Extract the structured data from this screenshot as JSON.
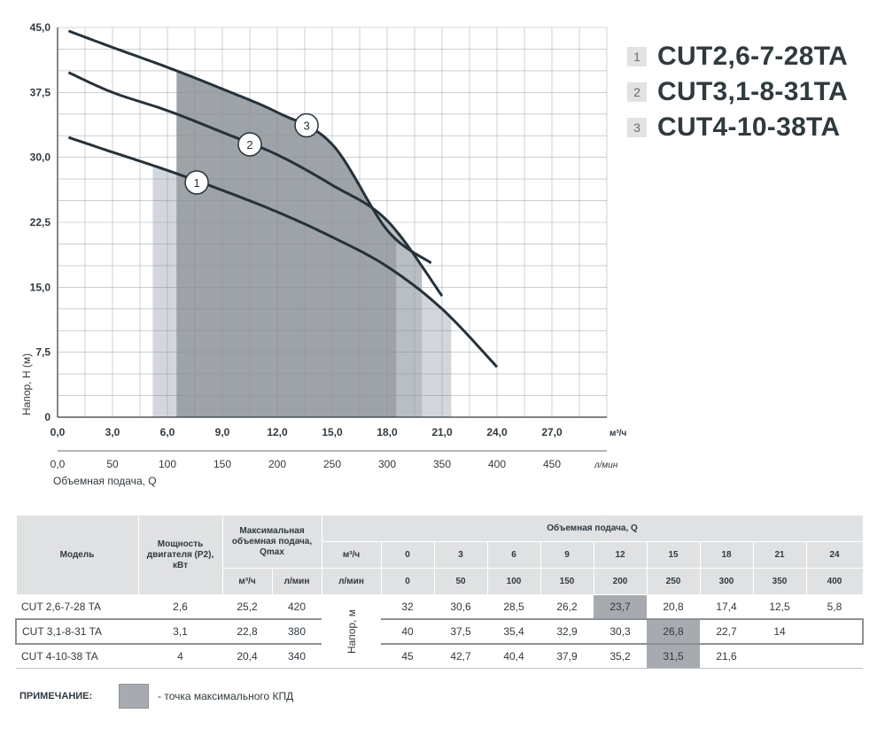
{
  "chart_data": {
    "type": "line",
    "ylabel": "Напор, Н (м)",
    "xlabel": "Объемная подача, Q",
    "x_unit_primary": "м³/ч",
    "x_unit_secondary": "л/мин",
    "xlim": [
      0,
      30
    ],
    "ylim": [
      0,
      45
    ],
    "x_ticks": [
      "0,0",
      "3,0",
      "6,0",
      "9,0",
      "12,0",
      "15,0",
      "18,0",
      "21,0",
      "24,0",
      "27,0"
    ],
    "x_ticks_secondary": [
      "0,0",
      "50",
      "100",
      "150",
      "200",
      "250",
      "300",
      "350",
      "400",
      "450"
    ],
    "y_ticks": [
      "0",
      "7,5",
      "15,0",
      "22,5",
      "30,0",
      "37,5",
      "45,0"
    ],
    "grid": true,
    "series": [
      {
        "name": "CUT2,6-7-28TA",
        "label": "1",
        "x": [
          0.6,
          3,
          6,
          9,
          12,
          15,
          18,
          21,
          24
        ],
        "y": [
          32.3,
          30.6,
          28.5,
          26.2,
          23.7,
          20.8,
          17.4,
          12.5,
          5.8
        ]
      },
      {
        "name": "CUT3,1-8-31TA",
        "label": "2",
        "x": [
          0.6,
          3,
          6,
          9,
          12,
          15,
          18,
          21
        ],
        "y": [
          39.8,
          37.5,
          35.4,
          32.9,
          30.3,
          26.8,
          22.7,
          14.0
        ]
      },
      {
        "name": "CUT4-10-38TA",
        "label": "3",
        "x": [
          0.6,
          3,
          6,
          9,
          12,
          15,
          18,
          20.4
        ],
        "y": [
          44.6,
          42.7,
          40.4,
          37.9,
          35.2,
          31.5,
          21.6,
          17.8
        ]
      }
    ],
    "label_positions": [
      {
        "label": "1",
        "x": 7.6,
        "y": 27.1
      },
      {
        "label": "2",
        "x": 10.5,
        "y": 31.5
      },
      {
        "label": "3",
        "x": 13.6,
        "y": 33.7
      }
    ],
    "regions": [
      {
        "x": [
          5.2,
          21.5
        ],
        "y_top_series": "CUT2,6-7-28TA",
        "color": "#d3d7db"
      },
      {
        "x": [
          6.5,
          19.9
        ],
        "y_top_series": "CUT3,1-8-31TA",
        "color": "#b9bec3"
      },
      {
        "x": [
          6.5,
          18.5
        ],
        "y_top_series": "CUT4-10-38TA",
        "color": "#9ea3a8"
      }
    ]
  },
  "legend": [
    {
      "num": "1",
      "name": "CUT2,6-7-28TA"
    },
    {
      "num": "2",
      "name": "CUT3,1-8-31TA"
    },
    {
      "num": "3",
      "name": "CUT4-10-38TA"
    }
  ],
  "table": {
    "h_model": "Модель",
    "h_power": "Мощность двигателя (Р2), кВт",
    "h_qmax": "Максимальная объемная подача, Qmax",
    "h_flow": "Объемная подача, Q",
    "h_m3h": "м³/ч",
    "h_lmin": "л/мин",
    "head_label": "Напор, м",
    "q_m3h": [
      "0",
      "3",
      "6",
      "9",
      "12",
      "15",
      "18",
      "21",
      "24"
    ],
    "q_lmin": [
      "0",
      "50",
      "100",
      "150",
      "200",
      "250",
      "300",
      "350",
      "400"
    ],
    "rows": [
      {
        "model": "CUT 2,6-7-28 TA",
        "power": "2,6",
        "qmax_m3h": "25,2",
        "qmax_lmin": "420",
        "values": [
          "32",
          "30,6",
          "28,5",
          "26,2",
          "23,7",
          "20,8",
          "17,4",
          "12,5",
          "5,8"
        ],
        "hl": 4
      },
      {
        "model": "CUT 3,1-8-31 TA",
        "power": "3,1",
        "qmax_m3h": "22,8",
        "qmax_lmin": "380",
        "values": [
          "40",
          "37,5",
          "35,4",
          "32,9",
          "30,3",
          "26,8",
          "22,7",
          "14",
          ""
        ],
        "hl": 5
      },
      {
        "model": "CUT 4-10-38 TA",
        "power": "4",
        "qmax_m3h": "20,4",
        "qmax_lmin": "340",
        "values": [
          "45",
          "42,7",
          "40,4",
          "37,9",
          "35,2",
          "31,5",
          "21,6",
          "",
          ""
        ],
        "hl": 5
      }
    ]
  },
  "note": {
    "label": "ПРИМЕЧАНИЕ:",
    "text": "- точка максимального КПД",
    "swatch_color": "#a7abaf"
  }
}
